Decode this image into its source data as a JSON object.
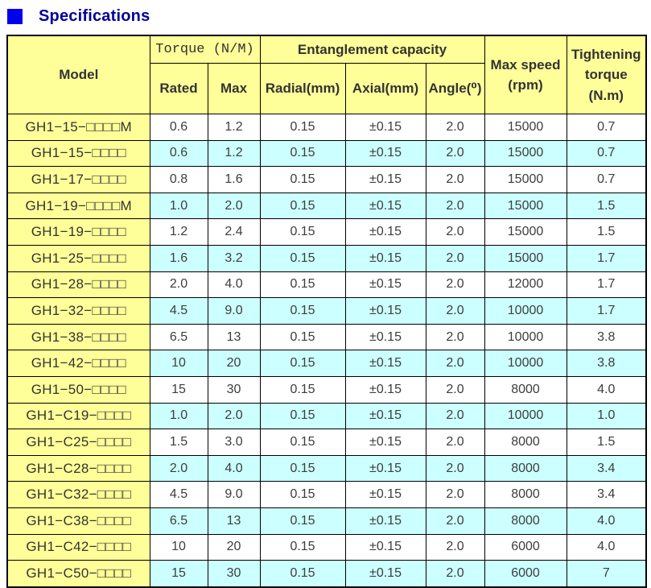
{
  "title": {
    "label": "Specifications"
  },
  "colors": {
    "title_text": "#00009b",
    "accent_square": "#0000f0",
    "header_bg": "#ffff99",
    "alt_row_bg": "#ccffff",
    "border_color": "#000000",
    "text_color": "#3d3d3d"
  },
  "table": {
    "headers": {
      "model": "Model",
      "torque_group": "Torque (N/M)",
      "rated": "Rated",
      "max": "Max",
      "entanglement_group": "Entanglement capacity",
      "radial": "Radial(mm)",
      "axial": "Axial(mm)",
      "angle": "Angle(⁰)",
      "max_speed": "Max speed\n(rpm)",
      "tightening": "Tightening\ntorque\n(N.m)"
    },
    "rows": [
      {
        "model": "GH1−15−□□□□M",
        "rated": "0.6",
        "max": "1.2",
        "radial": "0.15",
        "axial": "±0.15",
        "angle": "2.0",
        "max_speed": "15000",
        "tightening": "0.7"
      },
      {
        "model": "GH1−15−□□□□",
        "rated": "0.6",
        "max": "1.2",
        "radial": "0.15",
        "axial": "±0.15",
        "angle": "2.0",
        "max_speed": "15000",
        "tightening": "0.7"
      },
      {
        "model": "GH1−17−□□□□",
        "rated": "0.8",
        "max": "1.6",
        "radial": "0.15",
        "axial": "±0.15",
        "angle": "2.0",
        "max_speed": "15000",
        "tightening": "0.7"
      },
      {
        "model": "GH1−19−□□□□M",
        "rated": "1.0",
        "max": "2.0",
        "radial": "0.15",
        "axial": "±0.15",
        "angle": "2.0",
        "max_speed": "15000",
        "tightening": "1.5"
      },
      {
        "model": "GH1−19−□□□□",
        "rated": "1.2",
        "max": "2.4",
        "radial": "0.15",
        "axial": "±0.15",
        "angle": "2.0",
        "max_speed": "15000",
        "tightening": "1.5"
      },
      {
        "model": "GH1−25−□□□□",
        "rated": "1.6",
        "max": "3.2",
        "radial": "0.15",
        "axial": "±0.15",
        "angle": "2.0",
        "max_speed": "15000",
        "tightening": "1.7"
      },
      {
        "model": "GH1−28−□□□□",
        "rated": "2.0",
        "max": "4.0",
        "radial": "0.15",
        "axial": "±0.15",
        "angle": "2.0",
        "max_speed": "12000",
        "tightening": "1.7"
      },
      {
        "model": "GH1−32−□□□□",
        "rated": "4.5",
        "max": "9.0",
        "radial": "0.15",
        "axial": "±0.15",
        "angle": "2.0",
        "max_speed": "10000",
        "tightening": "1.7"
      },
      {
        "model": "GH1−38−□□□□",
        "rated": "6.5",
        "max": "13",
        "radial": "0.15",
        "axial": "±0.15",
        "angle": "2.0",
        "max_speed": "10000",
        "tightening": "3.8"
      },
      {
        "model": "GH1−42−□□□□",
        "rated": "10",
        "max": "20",
        "radial": "0.15",
        "axial": "±0.15",
        "angle": "2.0",
        "max_speed": "10000",
        "tightening": "3.8"
      },
      {
        "model": "GH1−50−□□□□",
        "rated": "15",
        "max": "30",
        "radial": "0.15",
        "axial": "±0.15",
        "angle": "2.0",
        "max_speed": "8000",
        "tightening": "4.0"
      },
      {
        "model": "GH1−C19−□□□□",
        "rated": "1.0",
        "max": "2.0",
        "radial": "0.15",
        "axial": "±0.15",
        "angle": "2.0",
        "max_speed": "10000",
        "tightening": "1.0"
      },
      {
        "model": "GH1−C25−□□□□",
        "rated": "1.5",
        "max": "3.0",
        "radial": "0.15",
        "axial": "±0.15",
        "angle": "2.0",
        "max_speed": "8000",
        "tightening": "1.5"
      },
      {
        "model": "GH1−C28−□□□□",
        "rated": "2.0",
        "max": "4.0",
        "radial": "0.15",
        "axial": "±0.15",
        "angle": "2.0",
        "max_speed": "8000",
        "tightening": "3.4"
      },
      {
        "model": "GH1−C32−□□□□",
        "rated": "4.5",
        "max": "9.0",
        "radial": "0.15",
        "axial": "±0.15",
        "angle": "2.0",
        "max_speed": "8000",
        "tightening": "3.4"
      },
      {
        "model": "GH1−C38−□□□□",
        "rated": "6.5",
        "max": "13",
        "radial": "0.15",
        "axial": "±0.15",
        "angle": "2.0",
        "max_speed": "8000",
        "tightening": "4.0"
      },
      {
        "model": "GH1−C42−□□□□",
        "rated": "10",
        "max": "20",
        "radial": "0.15",
        "axial": "±0.15",
        "angle": "2.0",
        "max_speed": "6000",
        "tightening": "4.0"
      },
      {
        "model": "GH1−C50−□□□□",
        "rated": "15",
        "max": "30",
        "radial": "0.15",
        "axial": "±0.15",
        "angle": "2.0",
        "max_speed": "6000",
        "tightening": "7"
      }
    ]
  }
}
